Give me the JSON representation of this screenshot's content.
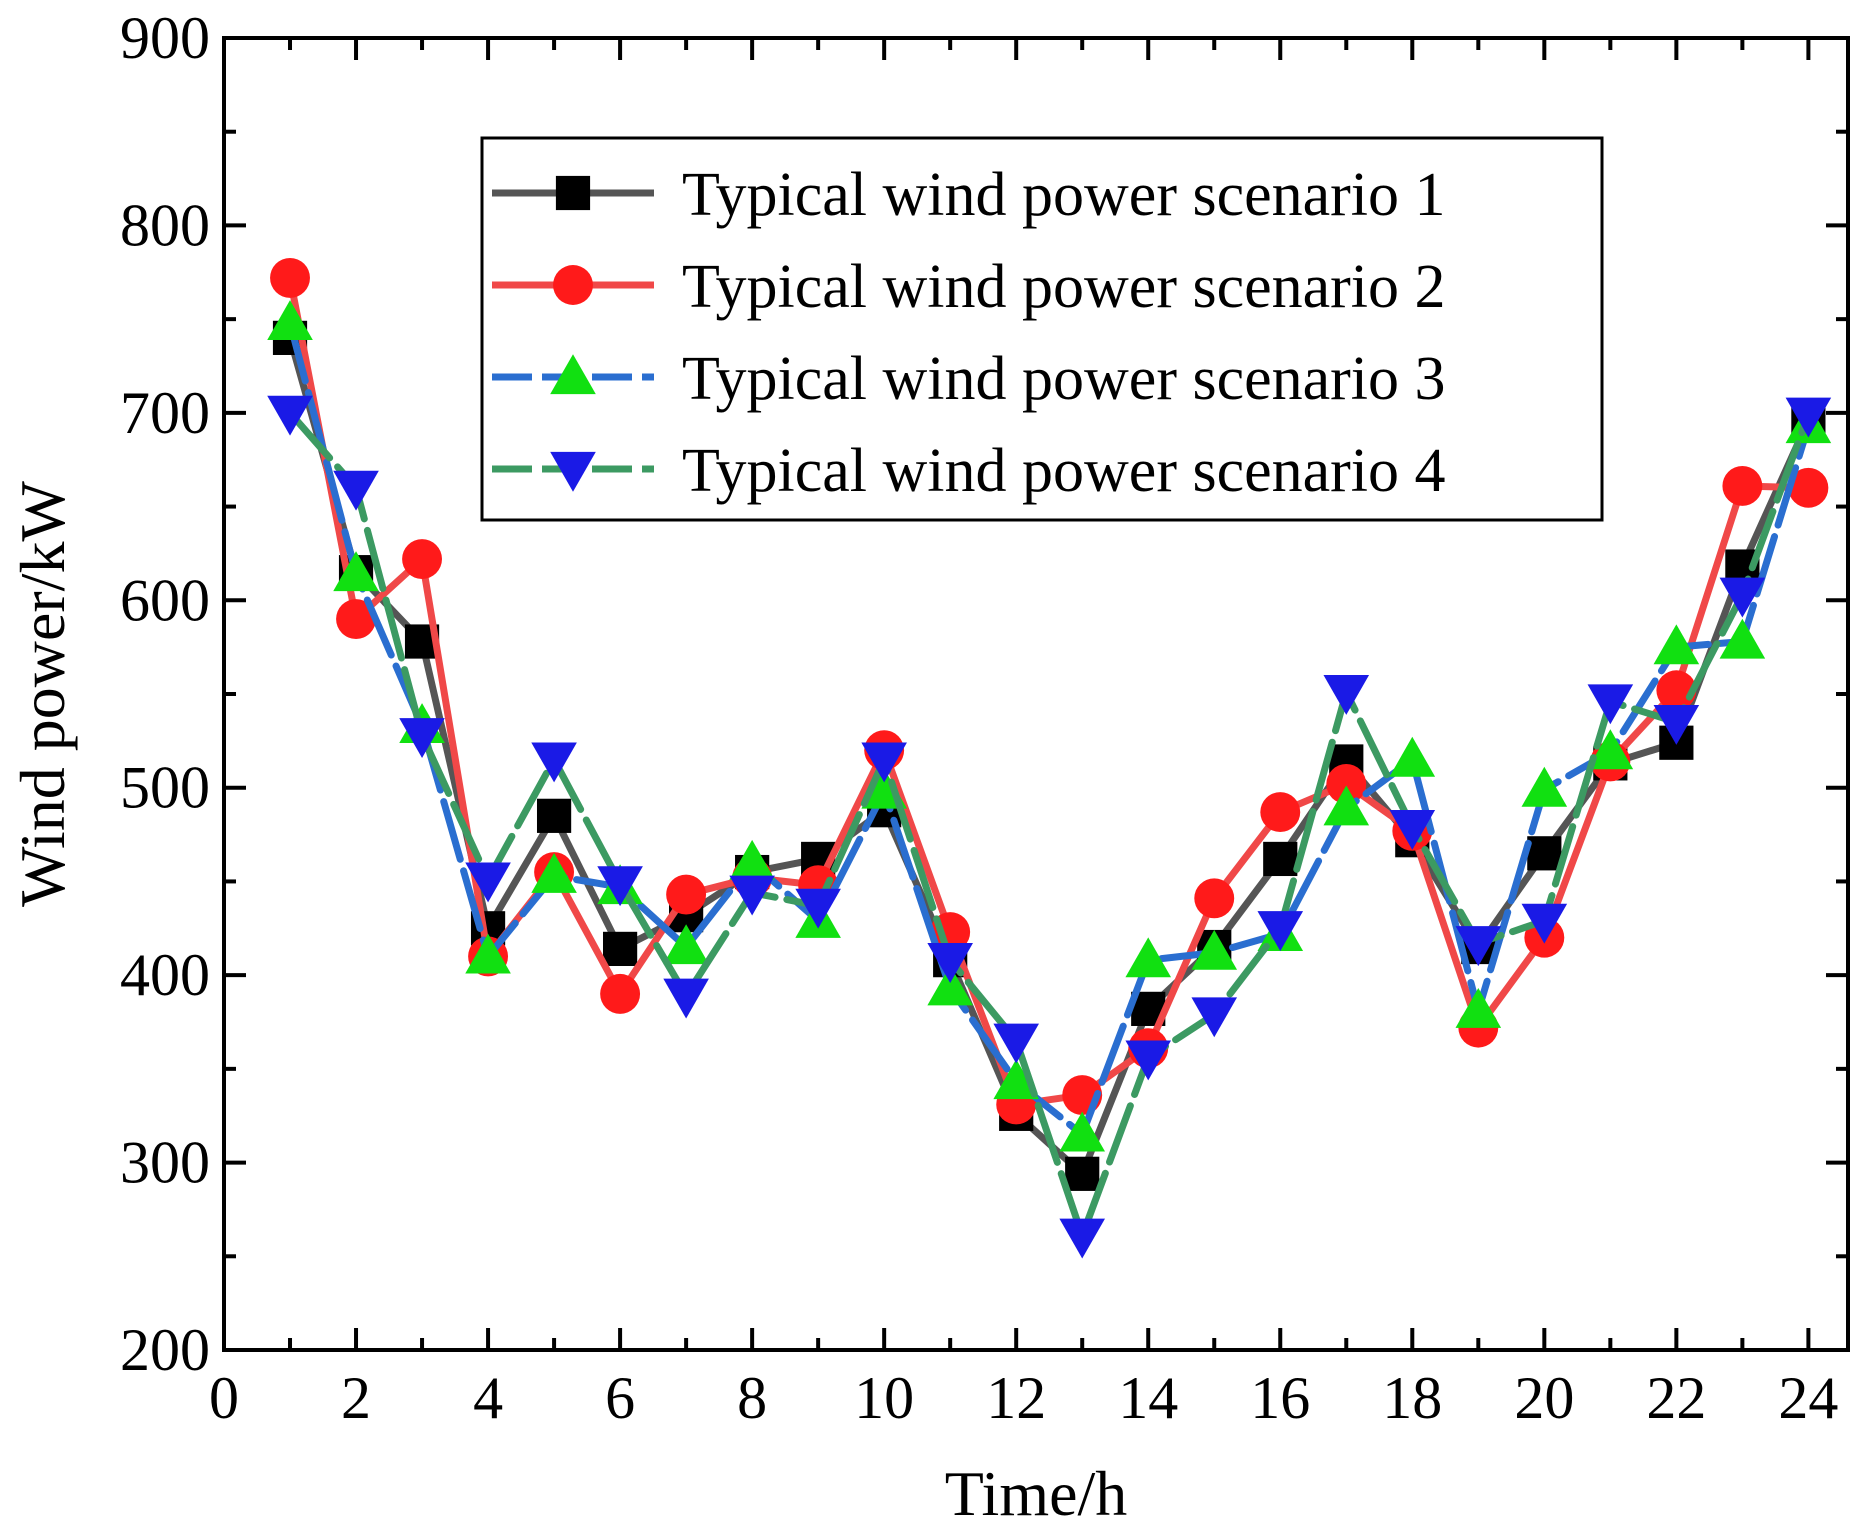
{
  "chart_data": {
    "type": "line",
    "title": "",
    "xlabel": "Time/h",
    "ylabel": "Wind power/kW",
    "xlim": [
      0,
      24.6
    ],
    "ylim": [
      200,
      900
    ],
    "xticks": [
      0,
      2,
      4,
      6,
      8,
      10,
      12,
      14,
      16,
      18,
      20,
      22,
      24
    ],
    "yticks": [
      200,
      300,
      400,
      500,
      600,
      700,
      800,
      900
    ],
    "x": [
      1,
      2,
      3,
      4,
      5,
      6,
      7,
      8,
      9,
      10,
      11,
      12,
      13,
      14,
      15,
      16,
      17,
      18,
      19,
      20,
      21,
      22,
      23,
      24
    ],
    "legend_position": "top-right",
    "series": [
      {
        "name": "Typical wind power scenario 1",
        "line_color": "#555555",
        "marker_color": "#000000",
        "marker": "square",
        "dash": "solid",
        "values": [
          740,
          615,
          578,
          425,
          485,
          414,
          432,
          455,
          462,
          488,
          408,
          326,
          294,
          382,
          415,
          462,
          514,
          472,
          415,
          465,
          513,
          524,
          618,
          696
        ]
      },
      {
        "name": "Typical wind power scenario 2",
        "line_color": "#f04848",
        "marker_color": "#ff1a1a",
        "marker": "circle",
        "dash": "solid",
        "values": [
          772,
          590,
          622,
          410,
          455,
          390,
          443,
          452,
          448,
          520,
          423,
          331,
          336,
          361,
          441,
          487,
          502,
          477,
          372,
          420,
          514,
          552,
          661,
          660
        ]
      },
      {
        "name": "Typical wind power scenario 3",
        "line_color": "#2a6ed0",
        "marker_color": "#11e011",
        "marker": "triangle-up",
        "dash": "longdash",
        "values": [
          748,
          614,
          533,
          410,
          453,
          447,
          415,
          460,
          429,
          498,
          393,
          343,
          315,
          408,
          412,
          422,
          489,
          515,
          381,
          499,
          519,
          575,
          578,
          693
        ]
      },
      {
        "name": "Typical wind power scenario 4",
        "line_color": "#3c9a62",
        "marker_color": "#1a1ae6",
        "marker": "triangle-down",
        "dash": "longdash",
        "values": [
          700,
          660,
          528,
          451,
          515,
          449,
          389,
          444,
          437,
          515,
          408,
          365,
          261,
          356,
          379,
          425,
          551,
          479,
          417,
          429,
          546,
          535,
          603,
          699
        ]
      }
    ]
  }
}
